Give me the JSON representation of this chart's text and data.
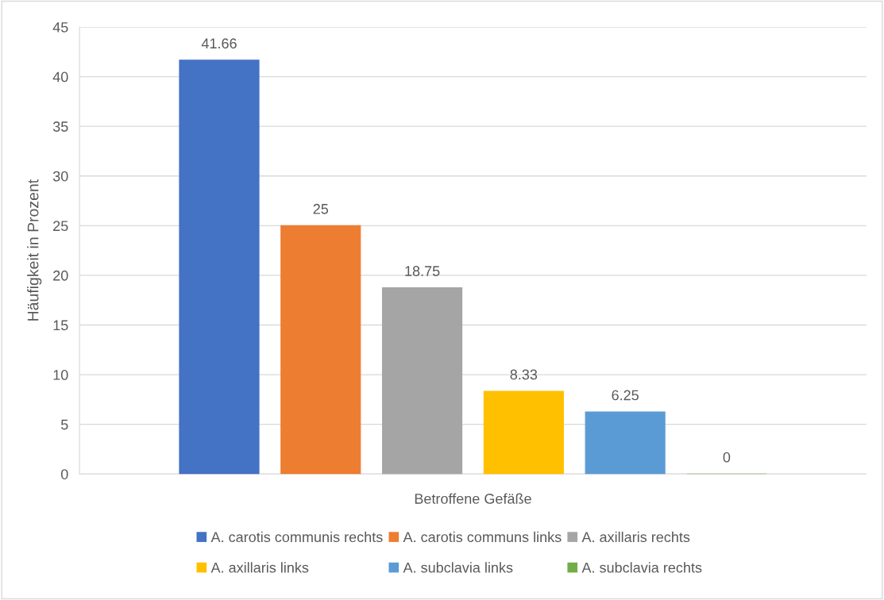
{
  "chart_data": {
    "type": "bar",
    "xlabel": "Betroffene Gefäße",
    "ylabel": "Häufigkeit in Prozent",
    "categories": [
      null
    ],
    "series": [
      {
        "name": "A. carotis communis rechts",
        "color": "#4472c4",
        "values": [
          41.66
        ]
      },
      {
        "name": "A. carotis communs links",
        "color": "#ed7d31",
        "values": [
          25
        ]
      },
      {
        "name": "A. axillaris rechts",
        "color": "#a5a5a5",
        "values": [
          18.75
        ]
      },
      {
        "name": "A. axillaris links",
        "color": "#ffc000",
        "values": [
          8.33
        ]
      },
      {
        "name": "A. subclavia links",
        "color": "#5b9bd5",
        "values": [
          6.25
        ]
      },
      {
        "name": "A. subclavia rechts",
        "color": "#70ad47",
        "values": [
          0
        ]
      }
    ],
    "ylim": [
      0,
      45
    ],
    "yticks": [
      0,
      5,
      10,
      15,
      20,
      25,
      30,
      35,
      40,
      45
    ],
    "grid": "y",
    "legend": "bottom",
    "data_labels": true
  }
}
